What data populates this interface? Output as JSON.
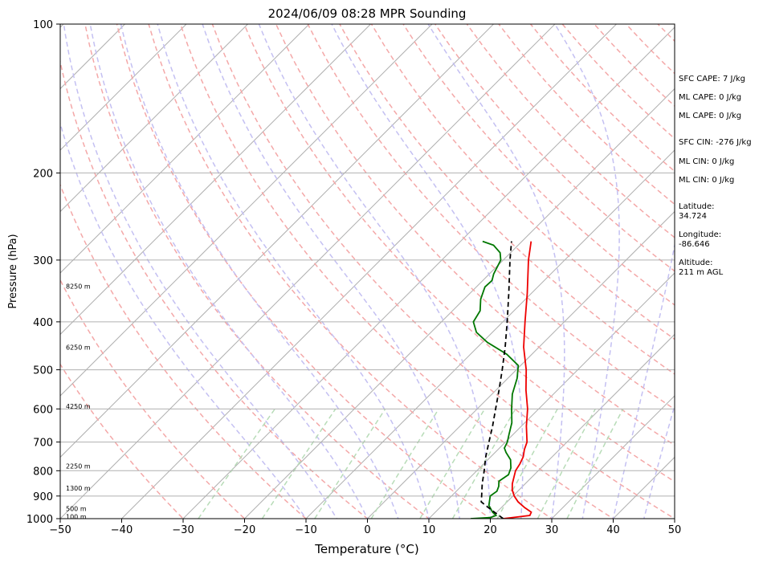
{
  "chart_data": {
    "type": "line",
    "title": "2024/06/09 08:28 MPR Sounding",
    "xlabel": "Temperature (°C)",
    "ylabel": "Pressure (hPa)",
    "xlim": [
      -50,
      50
    ],
    "ylim": [
      1000,
      100
    ],
    "y_scale": "log",
    "x_ticks": [
      "−50",
      "−40",
      "−30",
      "−20",
      "−10",
      "0",
      "10",
      "20",
      "30",
      "40",
      "50"
    ],
    "y_ticks": [
      "100",
      "200",
      "300",
      "400",
      "500",
      "600",
      "700",
      "800",
      "900",
      "1000"
    ],
    "height_labels": [
      {
        "p": 990,
        "label": "100 m"
      },
      {
        "p": 955,
        "label": "500 m"
      },
      {
        "p": 867,
        "label": "1300 m"
      },
      {
        "p": 783,
        "label": "2250 m"
      },
      {
        "p": 593,
        "label": "4250 m"
      },
      {
        "p": 450,
        "label": "6250 m"
      },
      {
        "p": 339,
        "label": "8250 m"
      }
    ],
    "series": [
      {
        "role": "temperature",
        "color": "#ee0000",
        "points": [
          [
            1000,
            22.1
          ],
          [
            985,
            25.9
          ],
          [
            970,
            25.6
          ],
          [
            950,
            23.8
          ],
          [
            925,
            21.8
          ],
          [
            900,
            20.2
          ],
          [
            875,
            18.9
          ],
          [
            850,
            17.9
          ],
          [
            800,
            16.3
          ],
          [
            775,
            15.9
          ],
          [
            750,
            15.3
          ],
          [
            725,
            14.3
          ],
          [
            700,
            13.5
          ],
          [
            650,
            10.8
          ],
          [
            600,
            8.2
          ],
          [
            550,
            4.9
          ],
          [
            500,
            1.6
          ],
          [
            450,
            -2.5
          ],
          [
            400,
            -6.4
          ],
          [
            350,
            -10.7
          ],
          [
            300,
            -15.9
          ],
          [
            275,
            -18.5
          ]
        ]
      },
      {
        "role": "dewpoint",
        "color": "#007700",
        "points": [
          [
            1000,
            16.8
          ],
          [
            995,
            19.8
          ],
          [
            985,
            20.4
          ],
          [
            970,
            19.3
          ],
          [
            940,
            17.6
          ],
          [
            900,
            16.3
          ],
          [
            880,
            16.6
          ],
          [
            860,
            16.1
          ],
          [
            840,
            15.3
          ],
          [
            815,
            15.8
          ],
          [
            790,
            15.1
          ],
          [
            760,
            13.7
          ],
          [
            735,
            11.8
          ],
          [
            720,
            10.8
          ],
          [
            700,
            10.3
          ],
          [
            675,
            9.3
          ],
          [
            640,
            7.9
          ],
          [
            600,
            5.6
          ],
          [
            560,
            3.3
          ],
          [
            520,
            1.5
          ],
          [
            490,
            -0.4
          ],
          [
            465,
            -4.1
          ],
          [
            440,
            -9.2
          ],
          [
            420,
            -12.6
          ],
          [
            400,
            -14.8
          ],
          [
            380,
            -15.5
          ],
          [
            360,
            -17.3
          ],
          [
            340,
            -18.6
          ],
          [
            330,
            -18.5
          ],
          [
            320,
            -19.3
          ],
          [
            300,
            -20.4
          ],
          [
            290,
            -21.7
          ],
          [
            280,
            -24.0
          ],
          [
            275,
            -26.4
          ]
        ]
      },
      {
        "role": "parcel",
        "color": "#000000",
        "dashed": true,
        "points": [
          [
            1000,
            22.1
          ],
          [
            975,
            20.0
          ],
          [
            950,
            17.9
          ],
          [
            925,
            15.8
          ],
          [
            900,
            14.9
          ],
          [
            850,
            13.0
          ],
          [
            800,
            11.2
          ],
          [
            750,
            9.2
          ],
          [
            700,
            7.3
          ],
          [
            650,
            5.3
          ],
          [
            600,
            3.0
          ],
          [
            550,
            0.5
          ],
          [
            500,
            -2.3
          ],
          [
            450,
            -5.5
          ],
          [
            400,
            -9.3
          ],
          [
            350,
            -13.7
          ],
          [
            300,
            -18.9
          ],
          [
            275,
            -21.7
          ]
        ]
      }
    ],
    "background_lines": [
      "isotherms",
      "dry adiabats",
      "moist adiabats",
      "mixing ratio"
    ],
    "grid": true
  },
  "sidebar": {
    "sfc_cape": "SFC CAPE: 7 J/kg",
    "ml_cape_1": "ML CAPE: 0 J/kg",
    "ml_cape_2": "ML CAPE: 0 J/kg",
    "sfc_cin": "SFC CIN: -276 J/kg",
    "ml_cin_1": "ML CIN: 0 J/kg",
    "ml_cin_2": "ML CIN: 0 J/kg",
    "latitude_label": "Latitude:",
    "latitude_value": "34.724",
    "longitude_label": "Longitude:",
    "longitude_value": "-86.646",
    "altitude_label": "Altitude:",
    "altitude_value": "211 m AGL"
  }
}
